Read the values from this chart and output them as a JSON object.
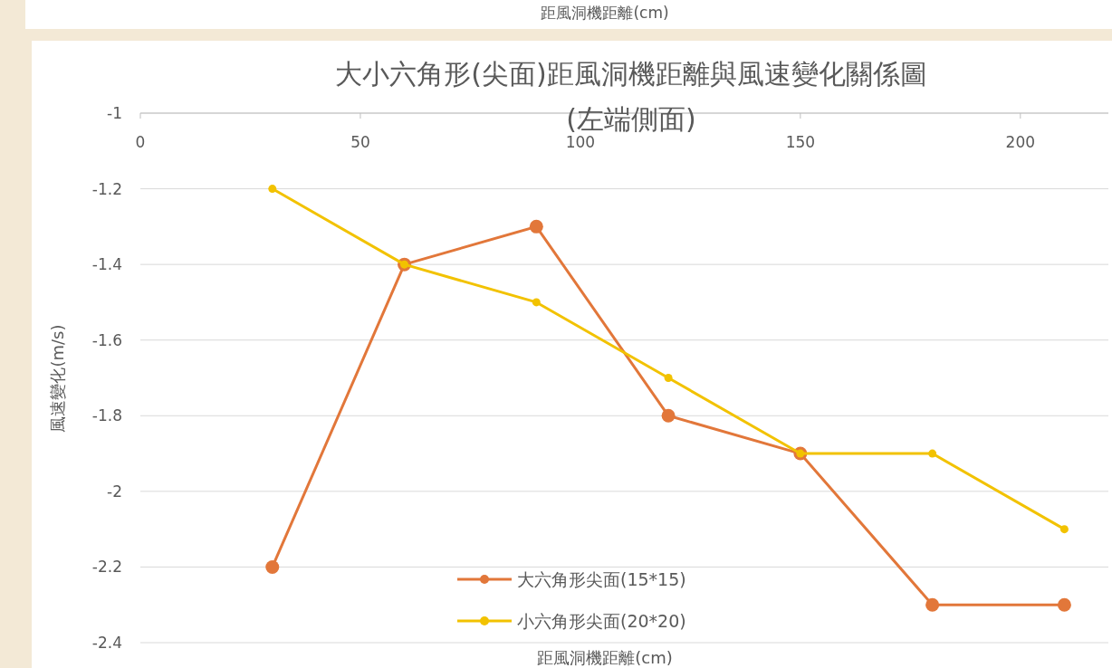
{
  "chart_data": {
    "type": "line",
    "title": "大小六角形(尖面)距風洞機距離與風速變化關係圖",
    "subtitle": "(左端側面)",
    "xlabel": "距風洞機距離(cm)",
    "ylabel": "風速變化(m/s)",
    "annotations": [
      "距風洞機距離(cm)"
    ],
    "x": [
      30,
      60,
      90,
      120,
      150,
      180,
      210
    ],
    "series": [
      {
        "name": "大六角形尖面(15*15)",
        "color": "#e2773a",
        "values": [
          -2.2,
          -1.4,
          -1.3,
          -1.8,
          -1.9,
          -2.3,
          -2.3
        ]
      },
      {
        "name": "小六角形尖面(20*20)",
        "color": "#f2c200",
        "values": [
          -1.2,
          -1.4,
          -1.5,
          -1.7,
          -1.9,
          -1.9,
          -2.1
        ]
      }
    ],
    "xlim": [
      0,
      220
    ],
    "xticks": [
      0,
      50,
      100,
      150,
      200
    ],
    "ylim": [
      -2.4,
      -1
    ],
    "yticks": [
      -1,
      -1.2,
      -1.4,
      -1.6,
      -1.8,
      -2,
      -2.2,
      -2.4
    ],
    "grid": "y",
    "legend": "bottom",
    "marker": "circle",
    "line_style": "solid"
  }
}
